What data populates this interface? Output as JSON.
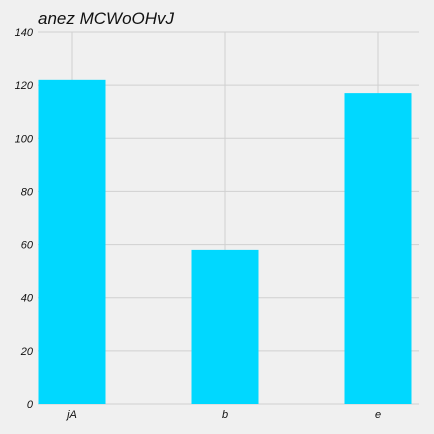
{
  "chart_data": {
    "type": "bar",
    "title": "anez MCWoOHvJ",
    "xlabel": "",
    "ylabel": "",
    "categories": [
      "jA",
      "b",
      "e"
    ],
    "values": [
      122,
      58,
      117
    ],
    "ylim": [
      0,
      140
    ],
    "yticks": [
      0,
      20,
      40,
      60,
      80,
      100,
      120,
      140
    ],
    "grid": true,
    "bar_color": "#00d8ff",
    "background": "#f0f0f0"
  }
}
